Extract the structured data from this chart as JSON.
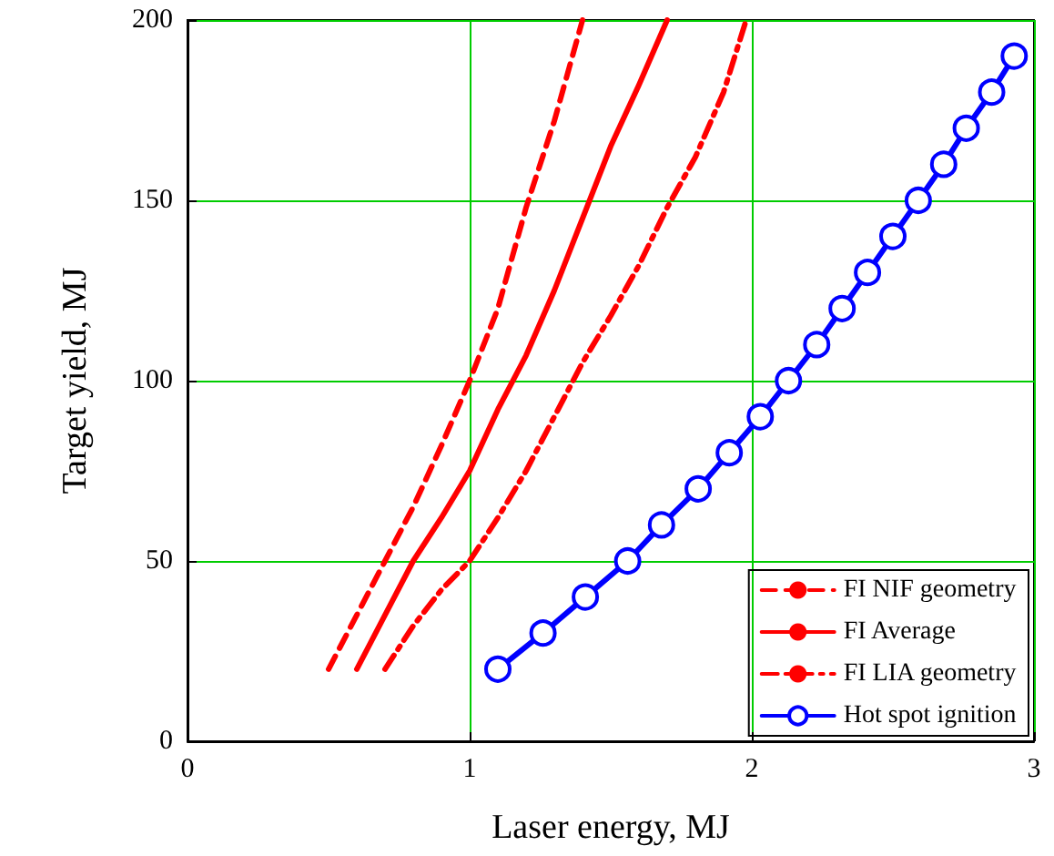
{
  "chart_data": {
    "type": "line",
    "xlabel": "Laser energy, MJ",
    "ylabel": "Target yield, MJ",
    "xlim": [
      0,
      3
    ],
    "xticks": [
      0,
      1,
      2,
      3
    ],
    "ylim": [
      0,
      200
    ],
    "yticks": [
      0,
      50,
      100,
      150,
      200
    ],
    "grid": true,
    "legend": "bottom right",
    "series": [
      {
        "name": "FI NIF geometry",
        "color": "#ff0000",
        "line_style": "dashed",
        "marker": "none",
        "x": [
          0.5,
          0.6,
          0.7,
          0.8,
          0.9,
          1.0,
          1.1,
          1.2,
          1.3,
          1.4
        ],
        "values": [
          20,
          35,
          50,
          65,
          82,
          100,
          120,
          148,
          172,
          200
        ]
      },
      {
        "name": "FI Average",
        "color": "#ff0000",
        "line_style": "solid",
        "marker": "none",
        "x": [
          0.6,
          0.7,
          0.8,
          0.9,
          1.0,
          1.1,
          1.2,
          1.3,
          1.4,
          1.5,
          1.6,
          1.7
        ],
        "values": [
          20,
          35,
          50,
          62,
          75,
          92,
          107,
          125,
          145,
          165,
          182,
          200
        ]
      },
      {
        "name": "FI LIA geometry",
        "color": "#ff0000",
        "line_style": "dashdot",
        "marker": "none",
        "x": [
          0.7,
          0.8,
          0.9,
          1.0,
          1.1,
          1.2,
          1.3,
          1.4,
          1.5,
          1.6,
          1.7,
          1.8,
          1.9,
          1.98
        ],
        "values": [
          20,
          32,
          42,
          50,
          62,
          75,
          90,
          105,
          118,
          132,
          148,
          162,
          180,
          200
        ]
      },
      {
        "name": "Hot spot ignition",
        "color": "#0000ff",
        "line_style": "solid",
        "marker": "circle",
        "x": [
          1.1,
          1.26,
          1.41,
          1.56,
          1.68,
          1.81,
          1.92,
          2.03,
          2.13,
          2.23,
          2.32,
          2.41,
          2.5,
          2.59,
          2.68,
          2.76,
          2.85,
          2.93
        ],
        "values": [
          20,
          30,
          40,
          50,
          60,
          70,
          80,
          90,
          100,
          110,
          120,
          130,
          140,
          150,
          160,
          170,
          180,
          190
        ]
      }
    ]
  }
}
